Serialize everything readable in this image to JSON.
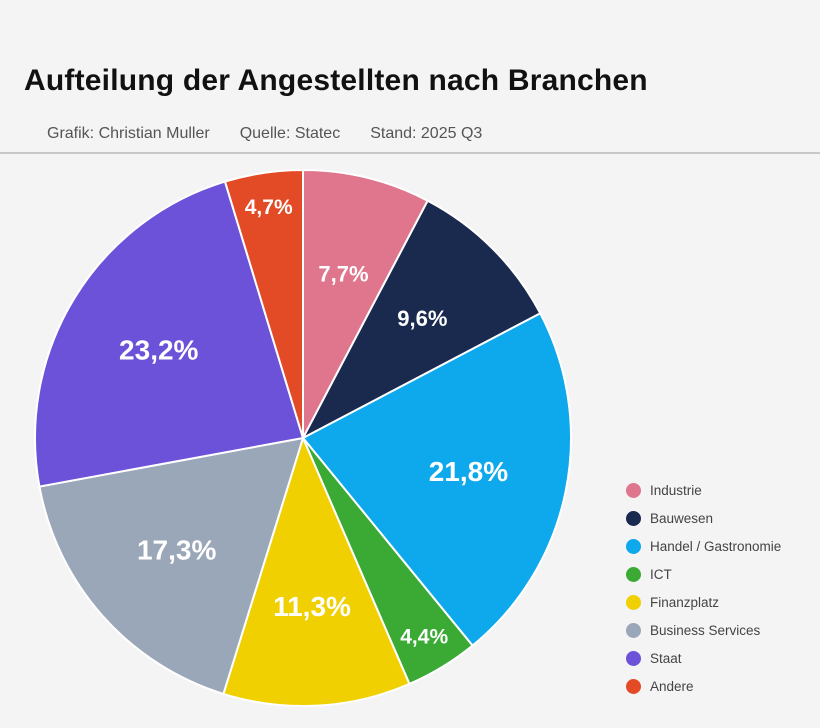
{
  "header": {
    "title": "Aufteilung der Angestellten nach Branchen",
    "meta": [
      "Grafik: Christian Muller",
      "Quelle: Statec",
      "Stand: 2025 Q3"
    ]
  },
  "chart_data": {
    "type": "pie",
    "start": "top",
    "direction": "clockwise",
    "legend_position": "right-bottom",
    "slices": [
      {
        "name": "Industrie",
        "value": 7.7,
        "label": "7,7%",
        "color": "#e0768d"
      },
      {
        "name": "Bauwesen",
        "value": 9.6,
        "label": "9,6%",
        "color": "#1a2a4e"
      },
      {
        "name": "Handel / Gastronomie",
        "value": 21.8,
        "label": "21,8%",
        "color": "#0ea8ec"
      },
      {
        "name": "ICT",
        "value": 4.4,
        "label": "4,4%",
        "color": "#3aaa35"
      },
      {
        "name": "Finanzplatz",
        "value": 11.3,
        "label": "11,3%",
        "color": "#f0d000"
      },
      {
        "name": "Business Services",
        "value": 17.3,
        "label": "17,3%",
        "color": "#9aa7b8"
      },
      {
        "name": "Staat",
        "value": 23.2,
        "label": "23,2%",
        "color": "#6b52d9"
      },
      {
        "name": "Andere",
        "value": 4.7,
        "label": "4,7%",
        "color": "#e24b26"
      }
    ]
  }
}
